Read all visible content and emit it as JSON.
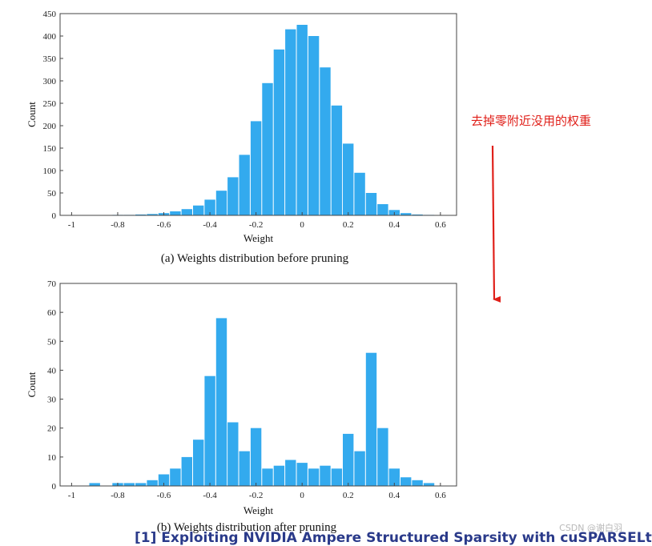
{
  "annotation": "去掉零附近没用的权重",
  "watermark": "CSDN @谢白羽",
  "footer": "[1] Exploiting NVIDIA Ampere Structured Sparsity with cuSPARSELt",
  "colors": {
    "bars": "#33aaee",
    "arrow": "#e0201a",
    "axis": "#444444"
  },
  "chart_data": [
    {
      "type": "bar",
      "caption": "(a)  Weights distribution before pruning",
      "xlabel": "Weight",
      "ylabel": "Count",
      "xlim": [
        -1.05,
        0.67
      ],
      "ylim": [
        0,
        450
      ],
      "xticks": [
        -1,
        -0.8,
        -0.6,
        -0.4,
        -0.2,
        0,
        0.2,
        0.4,
        0.6
      ],
      "yticks": [
        0,
        50,
        100,
        150,
        200,
        250,
        300,
        350,
        400,
        450
      ],
      "x": [
        -1.0,
        -0.95,
        -0.9,
        -0.85,
        -0.8,
        -0.75,
        -0.7,
        -0.65,
        -0.6,
        -0.55,
        -0.5,
        -0.45,
        -0.4,
        -0.35,
        -0.3,
        -0.25,
        -0.2,
        -0.15,
        -0.1,
        -0.05,
        0.0,
        0.05,
        0.1,
        0.15,
        0.2,
        0.25,
        0.3,
        0.35,
        0.4,
        0.45,
        0.5,
        0.55,
        0.6
      ],
      "values": [
        0,
        0,
        0,
        0,
        1,
        1,
        2,
        3,
        5,
        9,
        14,
        22,
        35,
        55,
        85,
        135,
        210,
        295,
        370,
        415,
        425,
        400,
        330,
        245,
        160,
        95,
        50,
        25,
        12,
        5,
        2,
        1,
        0
      ]
    },
    {
      "type": "bar",
      "caption": "(b)  Weights distribution after pruning",
      "xlabel": "Weight",
      "ylabel": "Count",
      "xlim": [
        -1.05,
        0.67
      ],
      "ylim": [
        0,
        70
      ],
      "xticks": [
        -1,
        -0.8,
        -0.6,
        -0.4,
        -0.2,
        0,
        0.2,
        0.4,
        0.6
      ],
      "yticks": [
        0,
        10,
        20,
        30,
        40,
        50,
        60,
        70
      ],
      "x": [
        -1.0,
        -0.95,
        -0.9,
        -0.85,
        -0.8,
        -0.75,
        -0.7,
        -0.65,
        -0.6,
        -0.55,
        -0.5,
        -0.45,
        -0.4,
        -0.35,
        -0.3,
        -0.25,
        -0.2,
        -0.15,
        -0.1,
        -0.05,
        0.0,
        0.05,
        0.1,
        0.15,
        0.2,
        0.25,
        0.3,
        0.35,
        0.4,
        0.45,
        0.5,
        0.55,
        0.6
      ],
      "values": [
        0,
        0,
        1,
        0,
        1,
        1,
        1,
        2,
        4,
        6,
        10,
        16,
        38,
        58,
        22,
        12,
        20,
        6,
        7,
        9,
        8,
        6,
        7,
        6,
        18,
        12,
        46,
        20,
        6,
        3,
        2,
        1,
        0
      ]
    }
  ]
}
